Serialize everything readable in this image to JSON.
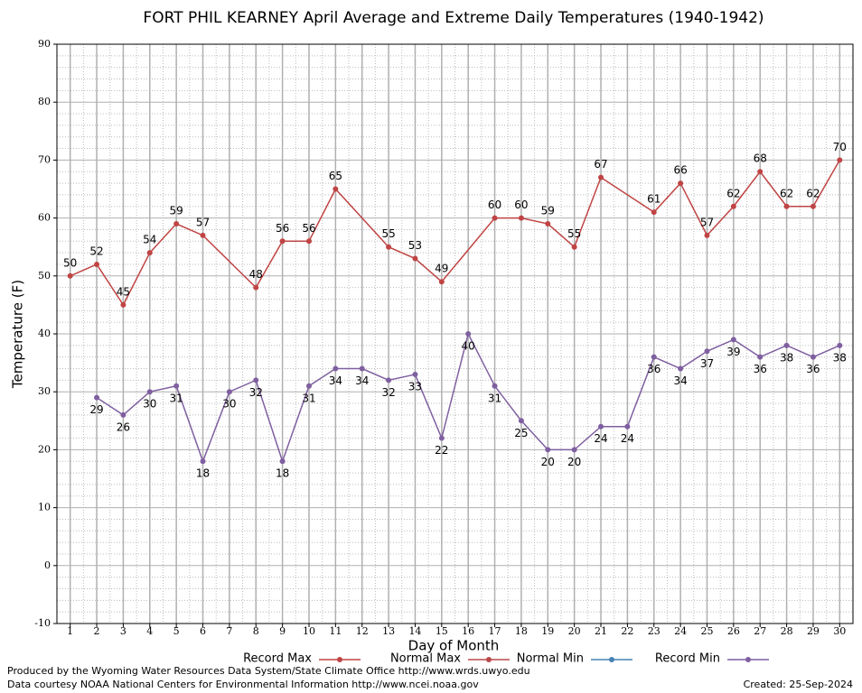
{
  "chart_data": {
    "type": "line",
    "title": "FORT PHIL KEARNEY April Average and Extreme Daily Temperatures (1940-1942)",
    "x_label": "Day of Month",
    "y_label": "Temperature (F)",
    "xlim": [
      0.5,
      30.5
    ],
    "xticks": [
      1,
      2,
      3,
      4,
      5,
      6,
      7,
      8,
      9,
      10,
      11,
      12,
      13,
      14,
      15,
      16,
      17,
      18,
      19,
      20,
      21,
      22,
      23,
      24,
      25,
      26,
      27,
      28,
      29,
      30
    ],
    "ylim": [
      -10,
      90
    ],
    "yticks": [
      -10,
      0,
      10,
      20,
      30,
      40,
      50,
      60,
      70,
      80,
      90
    ],
    "grid": true,
    "minor_grid": true,
    "series": [
      {
        "name": "Record Max",
        "color": "#c04444",
        "x": [
          1,
          2,
          3,
          4,
          5,
          6,
          8,
          9,
          10,
          11,
          13,
          14,
          15,
          17,
          18,
          19,
          20,
          21,
          23,
          24,
          25,
          26,
          27,
          28,
          29,
          30
        ],
        "values": [
          50,
          52,
          45,
          54,
          59,
          57,
          48,
          56,
          56,
          65,
          55,
          53,
          49,
          60,
          60,
          59,
          55,
          67,
          61,
          66,
          57,
          62,
          68,
          62,
          62,
          70
        ],
        "label_side": "above"
      },
      {
        "name": "Normal Max",
        "color": "#b84a4a",
        "x": [],
        "values": []
      },
      {
        "name": "Normal Min",
        "color": "#4682b4",
        "x": [],
        "values": []
      },
      {
        "name": "Record Min",
        "color": "#7f5fa0",
        "x": [
          2,
          3,
          4,
          5,
          6,
          7,
          8,
          9,
          10,
          11,
          12,
          13,
          14,
          15,
          16,
          17,
          18,
          19,
          20,
          21,
          22,
          23,
          24,
          25,
          26,
          27,
          28,
          29,
          30
        ],
        "values": [
          29,
          26,
          30,
          31,
          18,
          30,
          32,
          18,
          31,
          34,
          34,
          32,
          33,
          22,
          40,
          31,
          25,
          20,
          20,
          24,
          24,
          36,
          34,
          37,
          39,
          36,
          38,
          36,
          38
        ],
        "label_side": "below"
      }
    ],
    "footer": [
      "Produced by the Wyoming Water Resources Data System/State Climate Office http://www.wrds.uwyo.edu",
      "Data courtesy NOAA National Centers for Environmental Information http://www.ncei.noaa.gov"
    ],
    "created": "Created:  25-Sep-2024"
  }
}
